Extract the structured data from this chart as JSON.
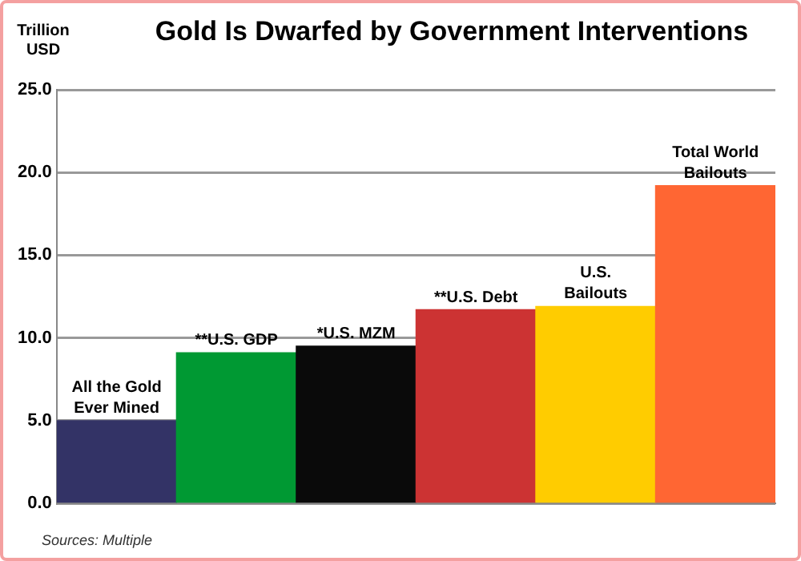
{
  "chart_data": {
    "type": "bar",
    "title": "Gold Is Dwarfed by Government Interventions",
    "ylabel": "Trillion USD",
    "categories": [
      "All the Gold Ever Mined",
      "**U.S. GDP",
      "*U.S. MZM",
      "**U.S. Debt",
      "U.S. Bailouts",
      "Total World Bailouts"
    ],
    "values": [
      5.0,
      9.1,
      9.5,
      11.7,
      11.9,
      19.2
    ],
    "colors": [
      "#333366",
      "#009933",
      "#0a0a0a",
      "#cc3333",
      "#ffcc00",
      "#ff6633"
    ],
    "ylim": [
      0,
      25
    ],
    "yticks": [
      {
        "value": 0,
        "label": "0.0"
      },
      {
        "value": 5,
        "label": "5.0"
      },
      {
        "value": 10,
        "label": "10.0"
      },
      {
        "value": 15,
        "label": "15.0"
      },
      {
        "value": 20,
        "label": "20.0"
      },
      {
        "value": 25,
        "label": "25.0"
      }
    ],
    "grid": "y",
    "tick_labels": "y",
    "legend": false,
    "annotations": [
      "Sources: Multiple"
    ]
  }
}
